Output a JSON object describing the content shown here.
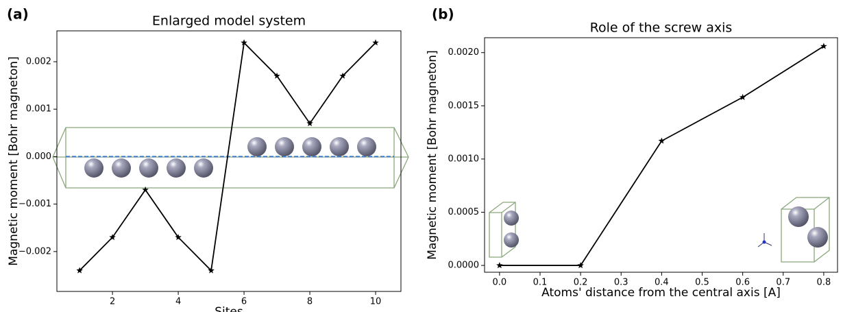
{
  "chart_data": [
    {
      "type": "line",
      "panel_label": "(a)",
      "title": "Enlarged model system",
      "xlabel": "Sites",
      "ylabel": "Magnetic moment [Bohr magneton]",
      "x": [
        1,
        2,
        3,
        4,
        5,
        6,
        7,
        8,
        9,
        10
      ],
      "series": [
        {
          "color": "#000000",
          "values": [
            -0.0024,
            -0.0017,
            -0.0007,
            -0.0017,
            -0.0024,
            0.0024,
            0.0017,
            0.0007,
            0.0017,
            0.0024
          ]
        }
      ],
      "xlim": [
        0.31,
        10.77
      ],
      "ylim": [
        -0.00284,
        0.00265
      ],
      "xticks": [
        2,
        4,
        6,
        8,
        10
      ],
      "yticks": [
        {
          "value": -0.002,
          "label": "−0.002"
        },
        {
          "value": -0.001,
          "label": "−0.001"
        },
        {
          "value": 0,
          "label": "0.000"
        },
        0.001,
        0.002
      ]
    },
    {
      "type": "line",
      "panel_label": "(b)",
      "title": "Role of the screw axis",
      "xlabel": "Atoms' distance from the central axis [A]",
      "ylabel": "Magnetic moment [Bohr magneton]",
      "x": [
        0,
        0.2,
        0.4,
        0.6,
        0.8
      ],
      "series": [
        {
          "color": "#000000",
          "values": [
            0,
            0,
            0.00117,
            0.00158,
            0.00206
          ]
        }
      ],
      "xlim": [
        -0.037,
        0.834
      ],
      "ylim": [
        -6.4e-05,
        0.00214
      ],
      "xticks": [
        {
          "value": 0,
          "label": "0.0"
        },
        0.1,
        0.2,
        0.3,
        0.4,
        0.5,
        0.6,
        0.7,
        0.8
      ],
      "yticks": [
        {
          "value": 0,
          "label": "0.0000"
        },
        {
          "value": 0.0005,
          "label": "0.0005"
        },
        {
          "value": 0.001,
          "label": "0.0010"
        },
        {
          "value": 0.0015,
          "label": "0.0015"
        },
        {
          "value": 0.002,
          "label": "0.0020"
        }
      ]
    }
  ]
}
